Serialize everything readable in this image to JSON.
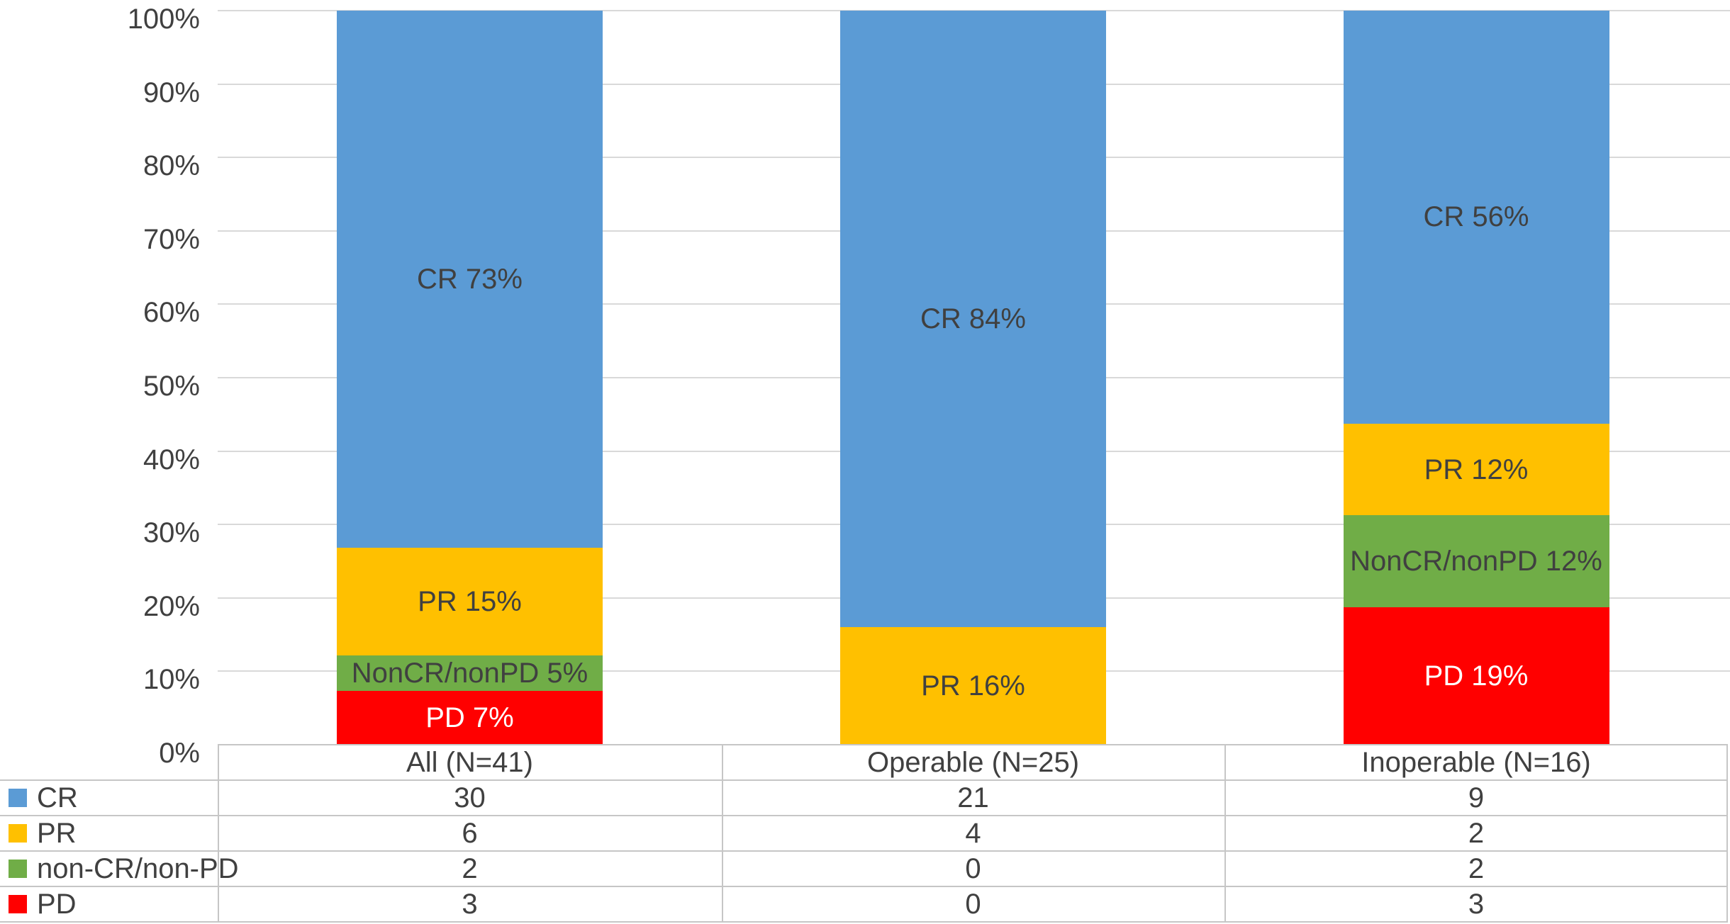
{
  "chart_data": {
    "type": "bar",
    "subtype": "stacked-100-percent-column",
    "title": "",
    "categories": [
      "All (N=41)",
      "Operable (N=25)",
      "Inoperable (N=16)"
    ],
    "totals": [
      41,
      25,
      16
    ],
    "series": [
      {
        "name": "CR",
        "color": "#5B9BD5",
        "values": [
          30,
          21,
          9
        ],
        "segment_labels": [
          "CR 73%",
          "CR 84%",
          "CR 56%"
        ],
        "label_color": "#404040"
      },
      {
        "name": "PR",
        "color": "#FFC000",
        "values": [
          6,
          4,
          2
        ],
        "segment_labels": [
          "PR 15%",
          "PR 16%",
          "PR 12%"
        ],
        "label_color": "#404040"
      },
      {
        "name": "non-CR/non-PD",
        "color": "#70AD47",
        "values": [
          2,
          0,
          2
        ],
        "segment_labels": [
          "NonCR/nonPD 5%",
          "",
          "NonCR/nonPD 12%"
        ],
        "label_color": "#404040"
      },
      {
        "name": "PD",
        "color": "#FF0000",
        "values": [
          3,
          0,
          3
        ],
        "segment_labels": [
          "PD 7%",
          "",
          "PD 19%"
        ],
        "label_color": "#FFFFFF"
      }
    ],
    "y_axis": {
      "min": 0,
      "max": 100,
      "tick_step": 10,
      "tick_labels": [
        "0%",
        "10%",
        "20%",
        "30%",
        "40%",
        "50%",
        "60%",
        "70%",
        "80%",
        "90%",
        "100%"
      ]
    },
    "grid": true,
    "legend_position": "data-table-left-column",
    "data_table": {
      "column_headers": [
        "All (N=41)",
        "Operable (N=25)",
        "Inoperable (N=16)"
      ],
      "rows": [
        {
          "label": "CR",
          "key_color": "#5B9BD5",
          "values": [
            "30",
            "21",
            "9"
          ]
        },
        {
          "label": "PR",
          "key_color": "#FFC000",
          "values": [
            "6",
            "4",
            "2"
          ]
        },
        {
          "label": "non-CR/non-PD",
          "key_color": "#70AD47",
          "values": [
            "2",
            "0",
            "2"
          ]
        },
        {
          "label": "PD",
          "key_color": "#FF0000",
          "values": [
            "3",
            "0",
            "3"
          ]
        }
      ]
    }
  },
  "style": {
    "text_color": "#404040",
    "gridline_color": "#D9D9D9",
    "table_border_color": "#C6C6C6",
    "background": "#FFFFFF"
  }
}
